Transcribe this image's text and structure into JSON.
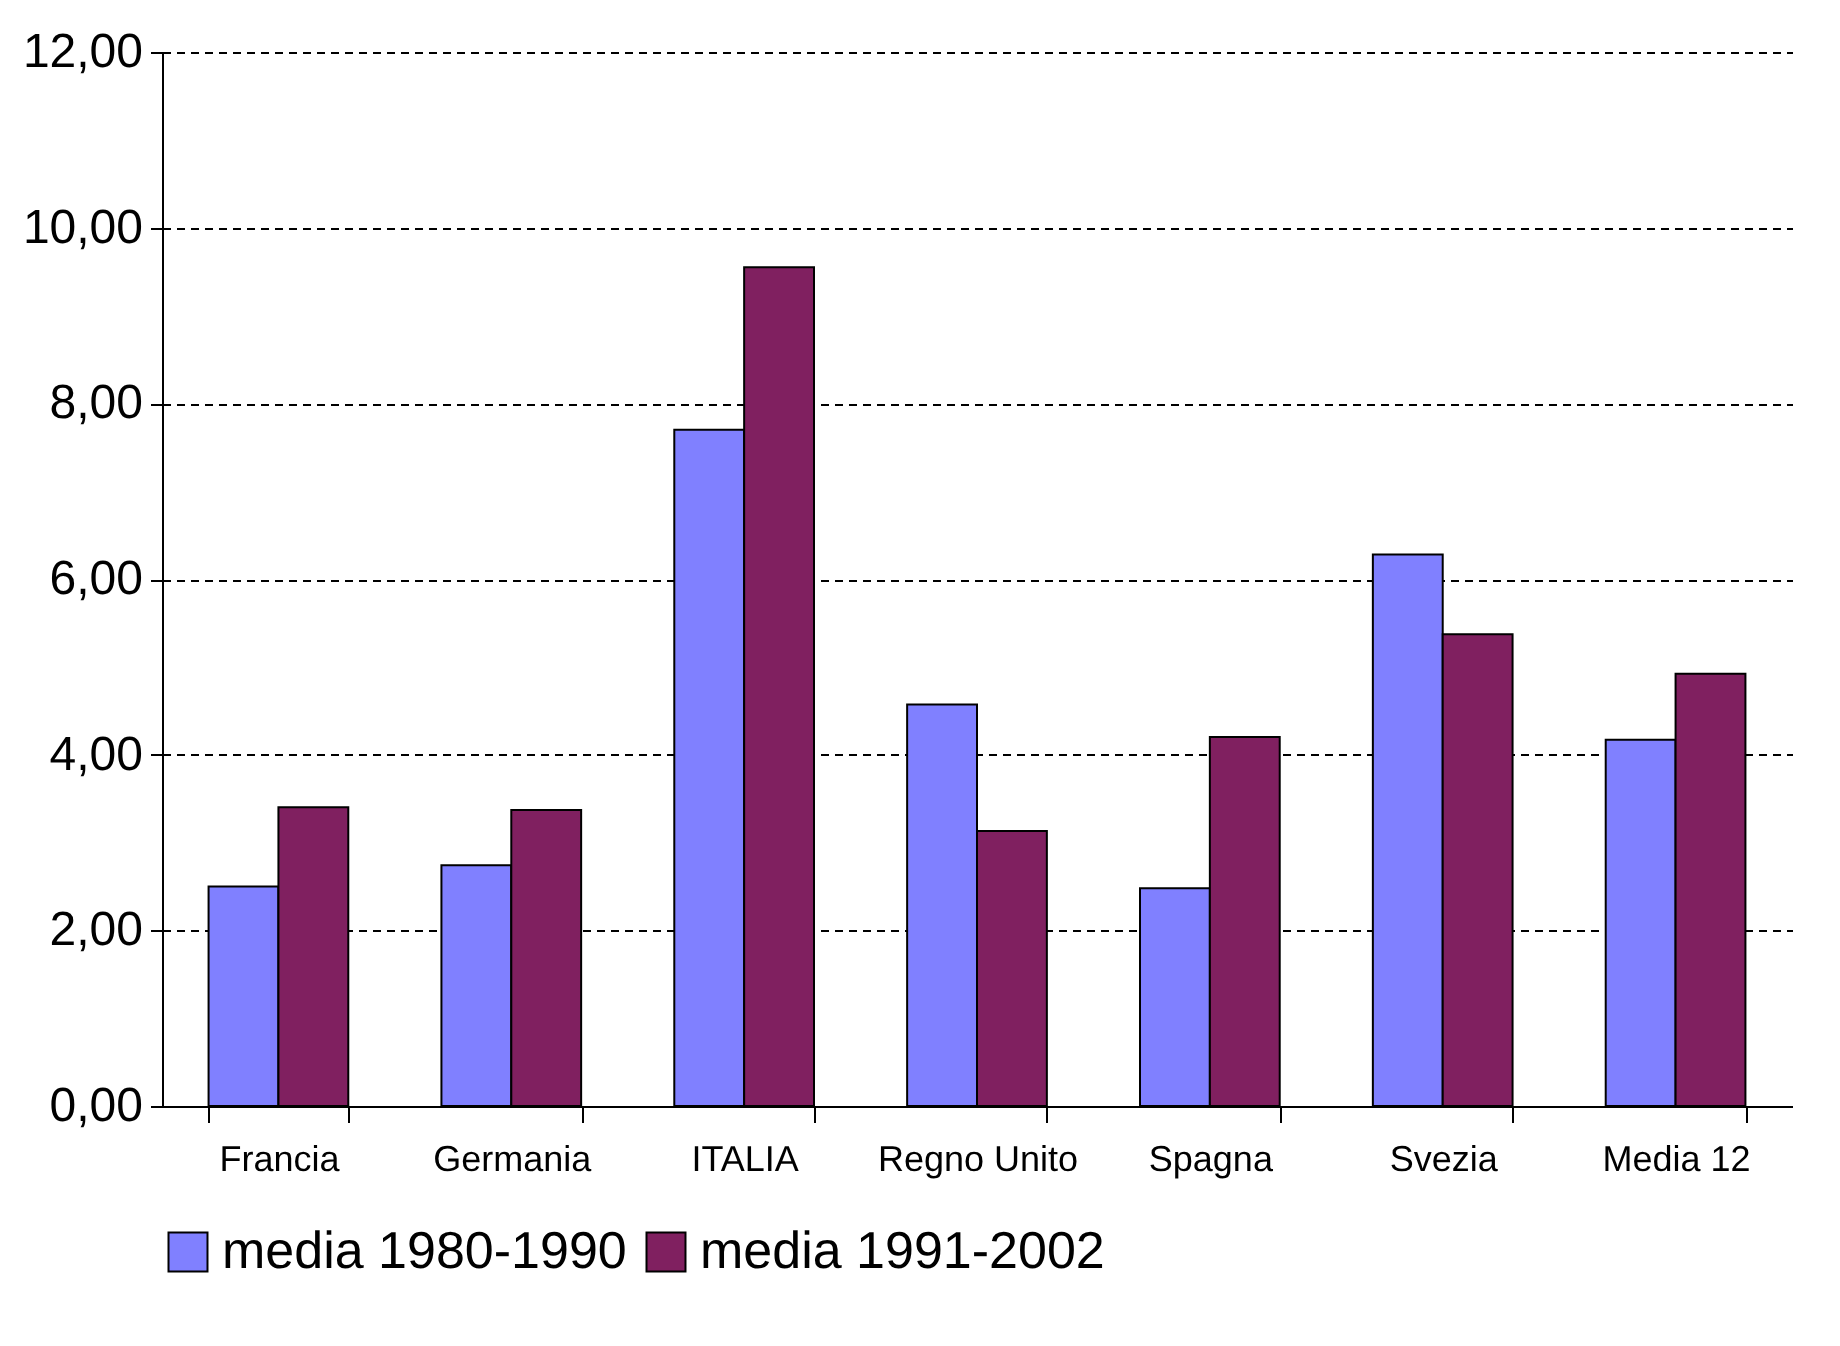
{
  "chart_data": {
    "type": "bar",
    "categories": [
      "Francia",
      "Germania",
      "ITALIA",
      "Regno Unito",
      "Spagna",
      "Svezia",
      "Media 12"
    ],
    "series": [
      {
        "name": "media 1980-1990",
        "color": "#8080ff",
        "values": [
          2.5,
          2.74,
          7.7,
          4.57,
          2.48,
          6.28,
          4.17
        ]
      },
      {
        "name": "media 1991-2002",
        "color": "#802060",
        "values": [
          3.4,
          3.37,
          9.55,
          3.13,
          4.2,
          5.37,
          4.92
        ]
      }
    ],
    "ylim": [
      0,
      12
    ],
    "yticks": [
      {
        "value": 0,
        "label": "0,00"
      },
      {
        "value": 2,
        "label": "2,00"
      },
      {
        "value": 4,
        "label": "4,00"
      },
      {
        "value": 6,
        "label": "6,00"
      },
      {
        "value": 8,
        "label": "8,00"
      },
      {
        "value": 10,
        "label": "10,00"
      },
      {
        "value": 12,
        "label": "12,00"
      }
    ],
    "grid": "y",
    "legend": "bottom"
  }
}
